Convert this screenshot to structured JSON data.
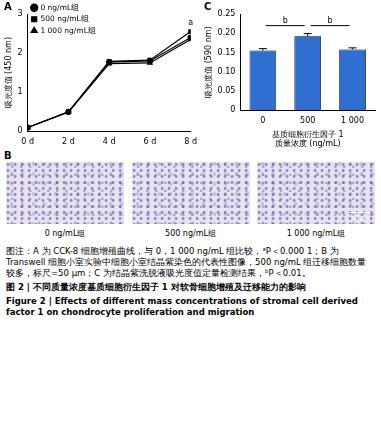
{
  "chart_data": [
    {
      "type": "line",
      "categories": [
        "0 d",
        "2 d",
        "4 d",
        "6 d",
        "8 d"
      ],
      "y_label": "吸光度值 (450 nm)",
      "ylim": [
        0,
        3
      ],
      "yticks": [
        0,
        1,
        2,
        3
      ],
      "grid": false,
      "legend": "upper left",
      "series": [
        {
          "name": "0 ng/mL组",
          "color": "#000000",
          "marker": "circle",
          "values": [
            0.1,
            0.5,
            1.77,
            1.8,
            2.4
          ]
        },
        {
          "name": "500 ng/mL组",
          "color": "#000000",
          "marker": "square",
          "values": [
            0.1,
            0.5,
            1.79,
            1.82,
            2.55
          ]
        },
        {
          "name": "1 000 ng/mL组",
          "color": "#000000",
          "marker": "triangle",
          "values": [
            0.1,
            0.49,
            1.73,
            1.75,
            2.35
          ]
        }
      ],
      "annotations": [
        {
          "category": "8 d",
          "text": "a"
        }
      ]
    },
    {
      "type": "bar",
      "categories": [
        "0",
        "500",
        "1 000"
      ],
      "x_label": [
        "基质细胞衍生因子 1",
        "质量浓度 (ng/mL)"
      ],
      "y_label": "吸光度值 (590 nm)",
      "values": [
        0.155,
        0.192,
        0.158
      ],
      "errors": [
        0.005,
        0.007,
        0.004
      ],
      "color": "#2e6fd1",
      "ylim": [
        0,
        0.25
      ],
      "yticks": [
        0,
        0.05,
        {
          "value": 0.1,
          "label": "0.10"
        },
        0.15,
        {
          "value": 0.2,
          "label": "0.20"
        },
        0.25
      ],
      "grid": false,
      "comparisons": [
        {
          "from": "0",
          "to": "500",
          "label": "b"
        },
        {
          "from": "500",
          "to": "1 000",
          "label": "b"
        }
      ]
    }
  ],
  "figure": {
    "panel_labels": [
      "A",
      "B",
      "C"
    ],
    "images": {
      "labels": [
        "0 ng/mL组",
        "500 ng/mL组",
        "1 000 ng/mL组"
      ],
      "scale_bar": "50 μm"
    },
    "caption": "图注：A 为 CCK-8 细胞增殖曲线，与 0，1 000 ng/mL 组比较，ᵃP＜0.000 1；B 为 Transwell 细胞小室实验中细胞小室结晶紫染色的代表性图像，500 ng/mL 组迁移细胞数量较多，标尺=50 μm；C 为结晶紫洗脱液吸光度值定量检测结果，ᵇP＜0.01。",
    "title": "图 2 | 不同质量浓度基质细胞衍生因子 1 对软骨细胞增殖及迁移能力的影响",
    "title_en": "Figure 2 | Effects of different mass concentrations of stromal cell derived factor 1 on chondrocyte proliferation and migration"
  }
}
